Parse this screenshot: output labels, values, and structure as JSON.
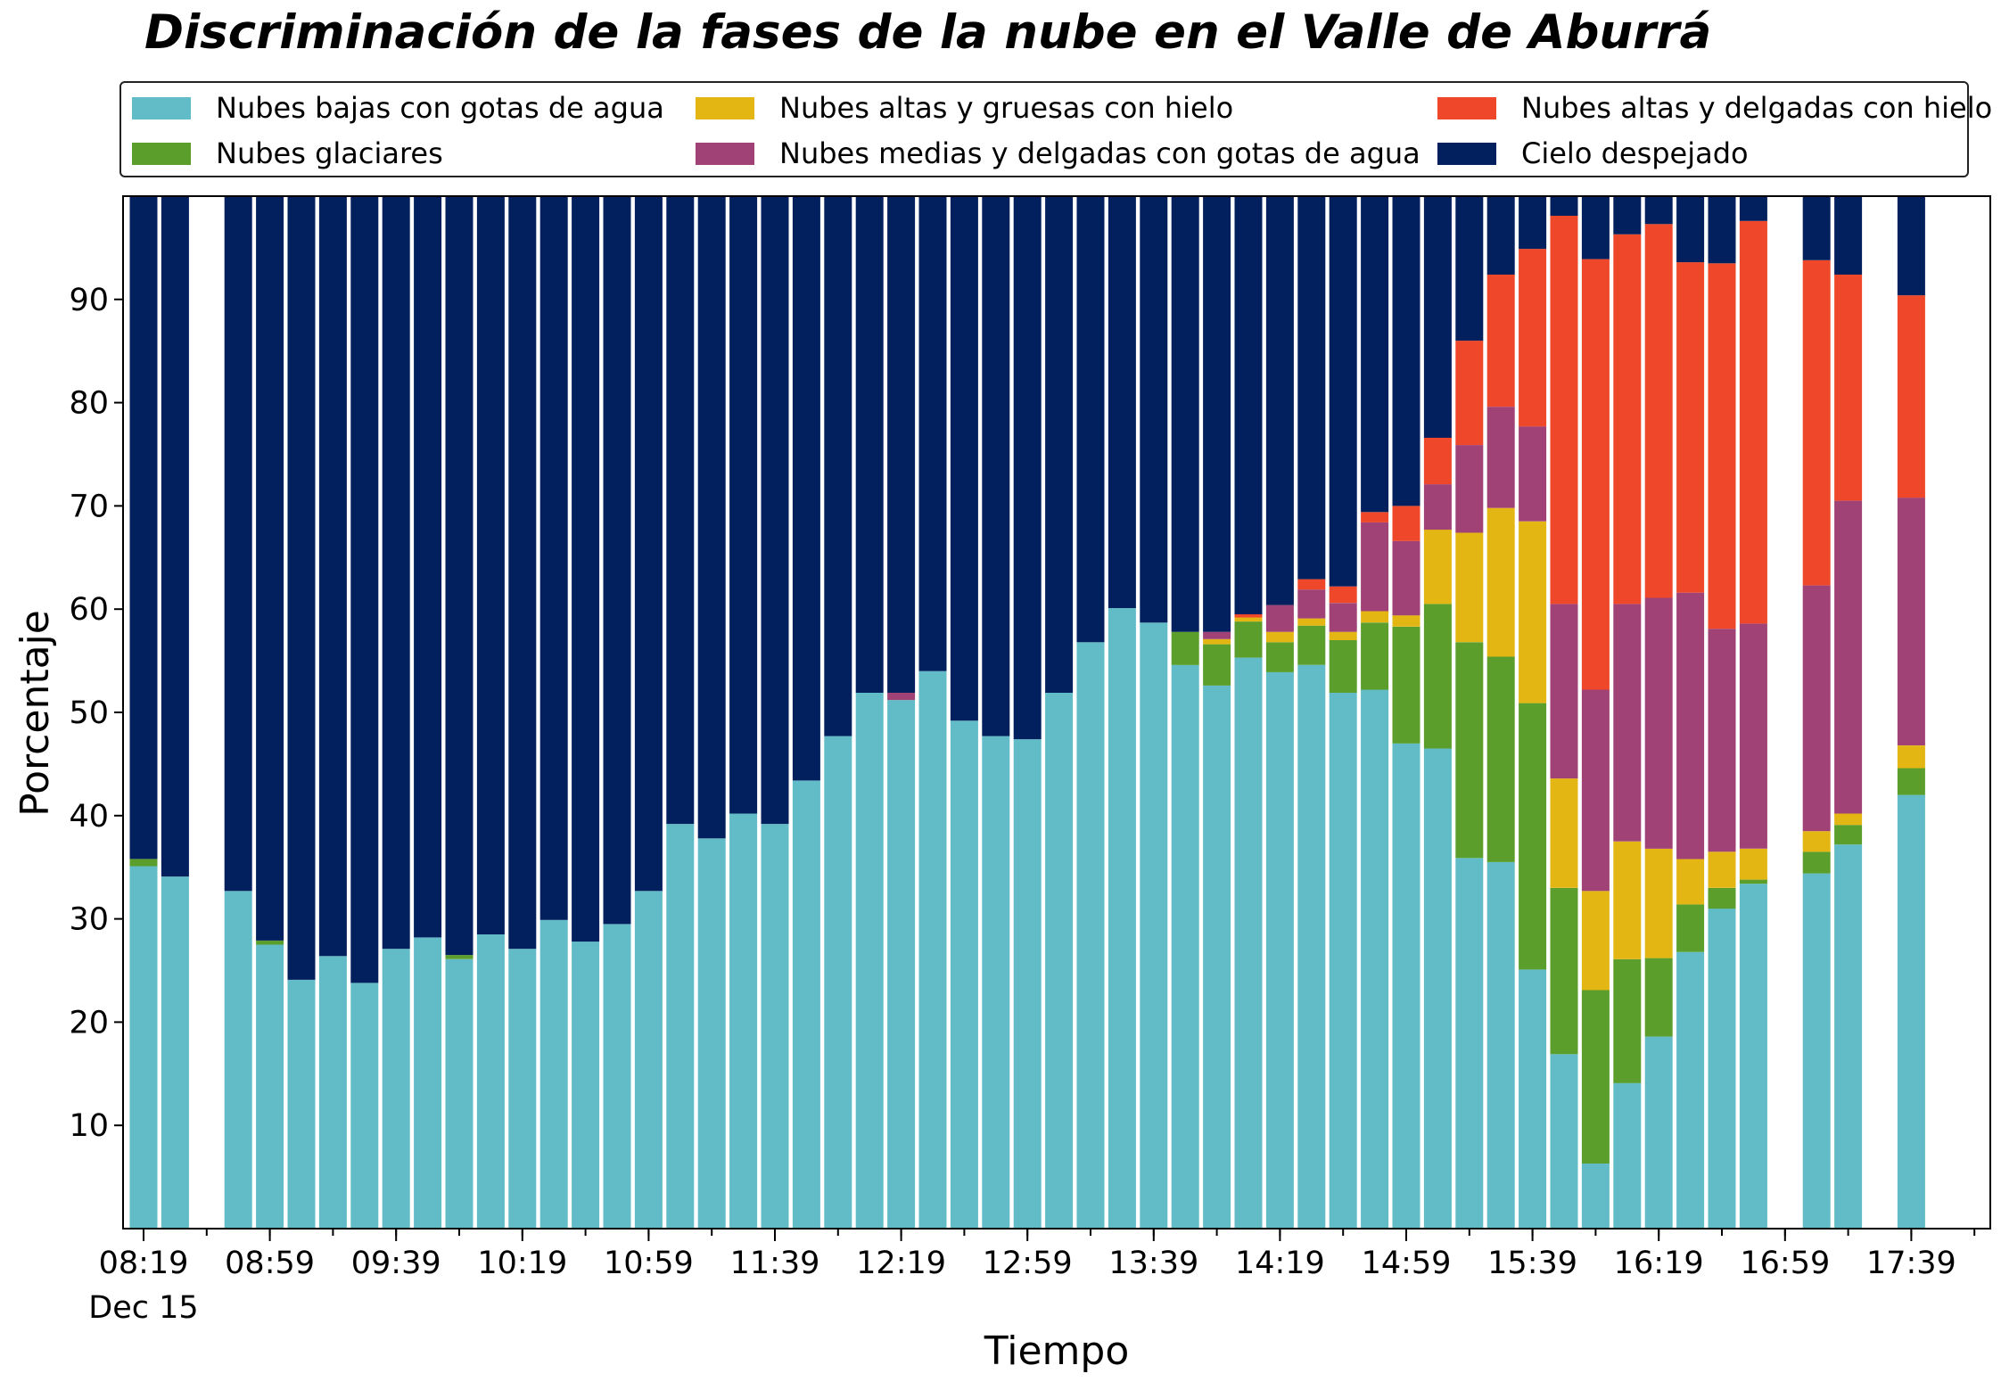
{
  "chart_data": {
    "type": "bar",
    "stacked": true,
    "title": "Discriminación de la fases de la nube en el Valle de Aburrá",
    "xlabel": "Tiempo",
    "ylabel": "Porcentaje",
    "ylim": [
      0,
      100
    ],
    "yticks": [
      10,
      20,
      30,
      40,
      50,
      60,
      70,
      80,
      90
    ],
    "grid": false,
    "legend_position": "top",
    "x_start": "08:19",
    "x_interval_minutes": 10,
    "xticks": [
      {
        "label": "08:19",
        "sublabel": "Dec 15",
        "slot": 0
      },
      {
        "label": "08:59",
        "slot": 4
      },
      {
        "label": "09:39",
        "slot": 8
      },
      {
        "label": "10:19",
        "slot": 12
      },
      {
        "label": "10:59",
        "slot": 16
      },
      {
        "label": "11:39",
        "slot": 20
      },
      {
        "label": "12:19",
        "slot": 24
      },
      {
        "label": "12:59",
        "slot": 28
      },
      {
        "label": "13:39",
        "slot": 32
      },
      {
        "label": "14:19",
        "slot": 36
      },
      {
        "label": "14:59",
        "slot": 40
      },
      {
        "label": "15:39",
        "slot": 44
      },
      {
        "label": "16:19",
        "slot": 48
      },
      {
        "label": "16:59",
        "slot": 52
      },
      {
        "label": "17:39",
        "slot": 56
      }
    ],
    "slots": [
      [
        35.1,
        0.7,
        0,
        0,
        0,
        64.2
      ],
      [
        34.1,
        0,
        0,
        0,
        0,
        65.9
      ],
      null,
      [
        32.7,
        0,
        0,
        0,
        0,
        67.3
      ],
      [
        27.5,
        0.4,
        0,
        0,
        0,
        72.1
      ],
      [
        24.1,
        0,
        0,
        0,
        0,
        75.9
      ],
      [
        26.4,
        0,
        0,
        0,
        0,
        73.6
      ],
      [
        23.8,
        0,
        0,
        0,
        0,
        76.2
      ],
      [
        27.1,
        0,
        0,
        0,
        0,
        72.9
      ],
      [
        28.2,
        0,
        0,
        0,
        0,
        71.8
      ],
      [
        26.1,
        0.4,
        0,
        0,
        0,
        73.5
      ],
      [
        28.5,
        0,
        0,
        0,
        0,
        71.5
      ],
      [
        27.1,
        0,
        0,
        0,
        0,
        72.9
      ],
      [
        29.9,
        0,
        0,
        0,
        0,
        70.1
      ],
      [
        27.8,
        0,
        0,
        0,
        0,
        72.2
      ],
      [
        29.5,
        0,
        0,
        0,
        0,
        70.5
      ],
      [
        32.7,
        0,
        0,
        0,
        0,
        67.3
      ],
      [
        39.2,
        0,
        0,
        0,
        0,
        60.8
      ],
      [
        37.8,
        0,
        0,
        0,
        0,
        62.2
      ],
      [
        40.2,
        0,
        0,
        0,
        0,
        59.8
      ],
      [
        39.2,
        0,
        0,
        0,
        0,
        60.8
      ],
      [
        43.4,
        0,
        0,
        0,
        0,
        56.6
      ],
      [
        47.7,
        0,
        0,
        0,
        0,
        52.3
      ],
      [
        51.9,
        0,
        0,
        0,
        0,
        48.1
      ],
      [
        51.2,
        0,
        0,
        0.7,
        0,
        48.1
      ],
      [
        54.0,
        0,
        0,
        0,
        0,
        46.0
      ],
      [
        49.2,
        0,
        0,
        0,
        0,
        50.8
      ],
      [
        47.7,
        0,
        0,
        0,
        0,
        52.3
      ],
      [
        47.4,
        0,
        0,
        0,
        0,
        52.6
      ],
      [
        51.9,
        0,
        0,
        0,
        0,
        48.1
      ],
      [
        56.8,
        0,
        0,
        0,
        0,
        43.2
      ],
      [
        60.1,
        0,
        0,
        0,
        0,
        39.9
      ],
      [
        58.7,
        0,
        0,
        0,
        0,
        41.3
      ],
      [
        54.6,
        3.2,
        0,
        0,
        0,
        42.2
      ],
      [
        52.6,
        4.0,
        0.5,
        0.7,
        0,
        42.2
      ],
      [
        55.3,
        3.5,
        0.4,
        0,
        0.3,
        40.5
      ],
      [
        53.9,
        2.9,
        1.0,
        2.6,
        0,
        39.6
      ],
      [
        54.6,
        3.8,
        0.7,
        2.8,
        1.0,
        37.1
      ],
      [
        51.9,
        5.1,
        0.8,
        2.8,
        1.6,
        37.8
      ],
      [
        52.2,
        6.5,
        1.1,
        8.6,
        1.0,
        30.6
      ],
      [
        47.0,
        11.3,
        1.1,
        7.2,
        3.4,
        30.0
      ],
      [
        46.5,
        14.0,
        7.2,
        4.4,
        4.5,
        23.4
      ],
      [
        35.9,
        20.9,
        10.6,
        8.5,
        10.1,
        14.0
      ],
      [
        35.5,
        19.9,
        14.4,
        9.8,
        12.8,
        7.6
      ],
      [
        25.1,
        25.8,
        17.6,
        9.2,
        17.2,
        5.1
      ],
      [
        16.9,
        16.1,
        10.6,
        16.9,
        37.6,
        1.9
      ],
      [
        6.3,
        16.8,
        9.6,
        19.5,
        41.7,
        6.1
      ],
      [
        14.1,
        12.0,
        11.4,
        23.0,
        35.8,
        3.7
      ],
      [
        18.6,
        7.6,
        10.6,
        24.3,
        36.2,
        2.7
      ],
      [
        26.8,
        4.6,
        4.4,
        25.8,
        32.0,
        6.4
      ],
      [
        31.0,
        2.0,
        3.5,
        21.6,
        35.4,
        6.5
      ],
      [
        33.4,
        0.4,
        3.0,
        21.8,
        39.0,
        2.4
      ],
      null,
      [
        34.4,
        2.1,
        2.0,
        23.8,
        31.5,
        6.2
      ],
      [
        37.2,
        1.9,
        1.1,
        30.3,
        21.9,
        7.6
      ],
      null,
      [
        42.0,
        2.6,
        2.2,
        24.0,
        19.6,
        9.6
      ]
    ],
    "series": [
      {
        "name": "Nubes bajas con gotas de agua",
        "color": "#62bcc7"
      },
      {
        "name": "Nubes glaciares",
        "color": "#5b9e2b"
      },
      {
        "name": "Nubes altas y gruesas con hielo",
        "color": "#e3b614"
      },
      {
        "name": "Nubes medias y delgadas con gotas de agua",
        "color": "#a14277"
      },
      {
        "name": "Nubes altas y delgadas con hielo",
        "color": "#ee472a"
      },
      {
        "name": "Cielo despejado",
        "color": "#02205d"
      }
    ]
  }
}
